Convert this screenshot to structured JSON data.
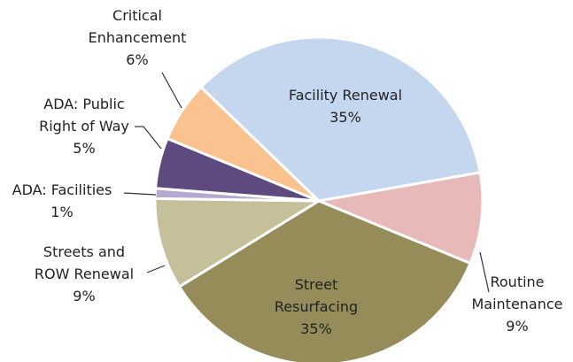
{
  "chart_data": {
    "type": "pie",
    "categories": [
      "Facility Renewal",
      "Routine Maintenance",
      "Street Resurfacing",
      "Streets and ROW Renewal",
      "ADA: Facilities",
      "ADA: Public Right of Way",
      "Critical Enhancement"
    ],
    "values": [
      35,
      9,
      35,
      9,
      1,
      5,
      6
    ],
    "value_labels": [
      "35%",
      "9%",
      "35%",
      "9%",
      "1%",
      "5%",
      "6%"
    ],
    "colors": [
      "#c5d6ef",
      "#e8b9b9",
      "#958c5a",
      "#c6c09a",
      "#b6a9d1",
      "#5e4a7e",
      "#f9c28e"
    ]
  }
}
